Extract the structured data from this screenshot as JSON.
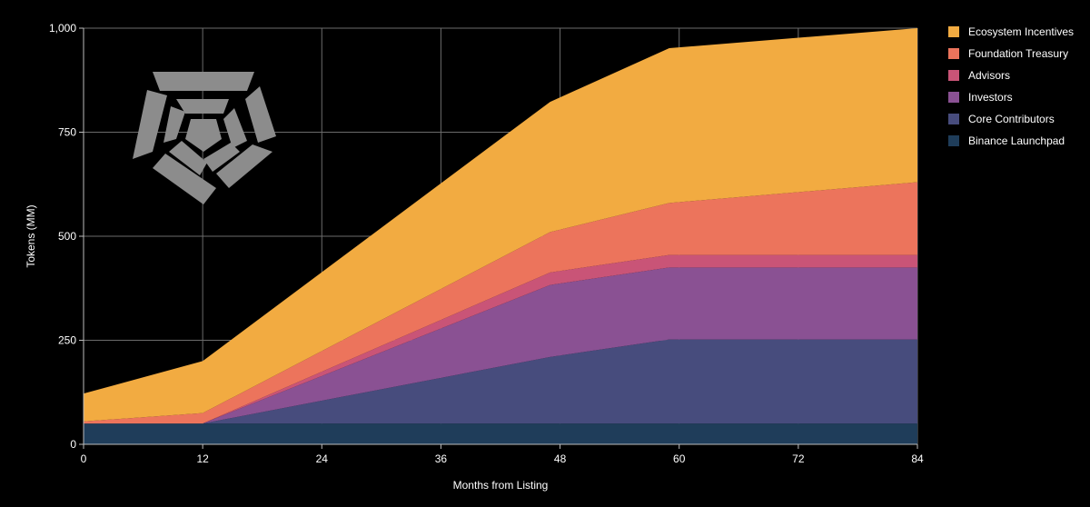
{
  "chart_data": {
    "type": "area",
    "stacked": true,
    "title": "",
    "xlabel": "Months from Listing",
    "ylabel": "Tokens (MM)",
    "x": [
      0,
      12,
      47,
      59,
      84
    ],
    "xlim": [
      0,
      84
    ],
    "ylim": [
      0,
      1000
    ],
    "x_ticks": [
      0,
      12,
      24,
      36,
      48,
      60,
      72,
      84
    ],
    "x_tick_labels": [
      "0",
      "12",
      "24",
      "36",
      "48",
      "60",
      "72",
      "84"
    ],
    "y_ticks": [
      0,
      250,
      500,
      750,
      1000
    ],
    "y_tick_labels": [
      "0",
      "250",
      "500",
      "750",
      "1,000"
    ],
    "grid": true,
    "legend_position": "right",
    "series": [
      {
        "name": "Binance Launchpad",
        "color": "#1f3d5a",
        "values": [
          50,
          50,
          50,
          50,
          50
        ]
      },
      {
        "name": "Core Contributors",
        "color": "#474c7d",
        "values": [
          0,
          0,
          160,
          202,
          202
        ]
      },
      {
        "name": "Investors",
        "color": "#8a5193",
        "values": [
          0,
          0,
          173,
          173,
          173
        ]
      },
      {
        "name": "Advisors",
        "color": "#c95477",
        "values": [
          0,
          0,
          30,
          30,
          30
        ]
      },
      {
        "name": "Foundation Treasury",
        "color": "#ec745c",
        "values": [
          5,
          25,
          97,
          125,
          175
        ]
      },
      {
        "name": "Ecosystem Incentives",
        "color": "#f2ab41",
        "values": [
          67,
          125,
          313,
          372,
          370
        ]
      }
    ],
    "legend_order": [
      "Ecosystem Incentives",
      "Foundation Treasury",
      "Advisors",
      "Investors",
      "Core Contributors",
      "Binance Launchpad"
    ]
  },
  "logo": {
    "icon": "pentagon-spiral-logo-icon",
    "color": "#8c8c8c"
  }
}
